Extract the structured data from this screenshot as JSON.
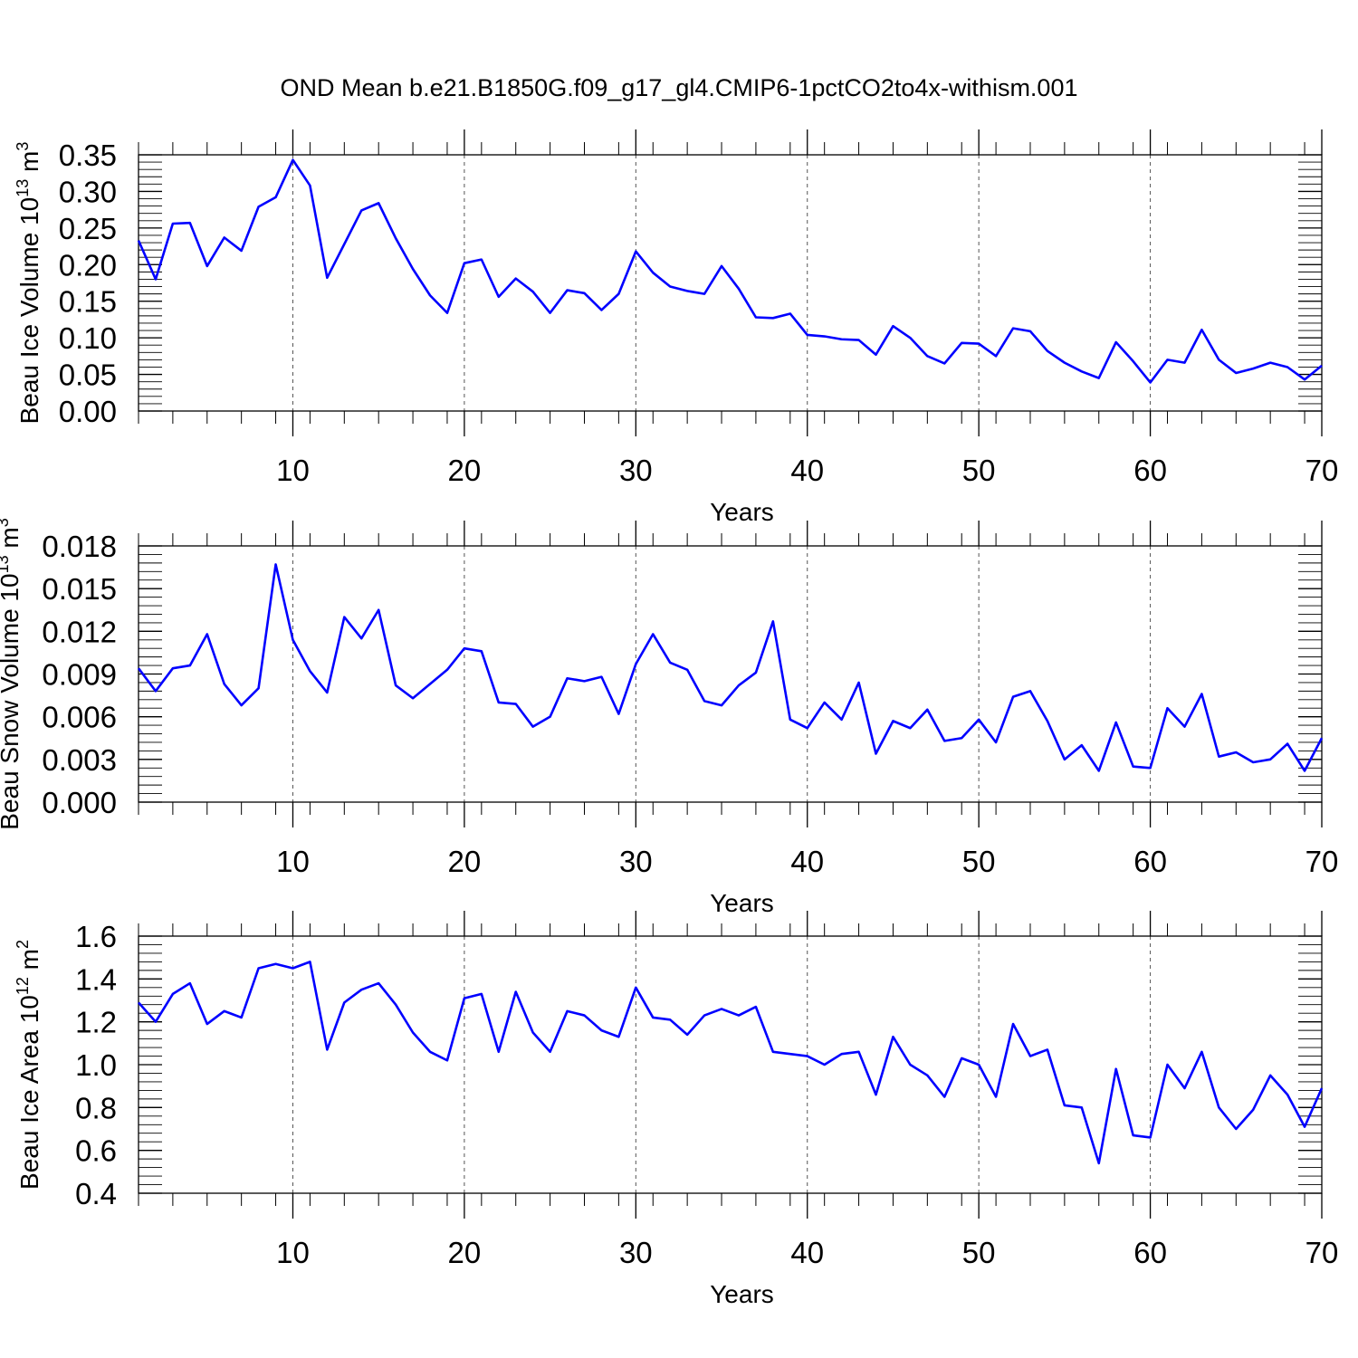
{
  "title": "OND Mean b.e21.B1850G.f09_g17_gl4.CMIP6-1pctCO2to4x-withism.001",
  "colors": {
    "line": "#0000ff",
    "axis": "#000000",
    "grid": "#555555"
  },
  "chart_data": [
    {
      "type": "line",
      "ylabel_main": "Beau Ice Volume 10",
      "ylabel_exp": "13",
      "ylabel_unit": "m",
      "ylabel_unit_exp": "3",
      "xlabel": "Years",
      "xlim": [
        1,
        70
      ],
      "ylim": [
        0,
        0.35
      ],
      "x_ticks": [
        10,
        20,
        30,
        40,
        50,
        60,
        70
      ],
      "x_tick_labels": [
        "10",
        "20",
        "30",
        "40",
        "50",
        "60",
        "70"
      ],
      "y_ticks": [
        0,
        0.05,
        0.1,
        0.15,
        0.2,
        0.25,
        0.3,
        0.35
      ],
      "y_tick_labels": [
        "0.00",
        "0.05",
        "0.10",
        "0.15",
        "0.20",
        "0.25",
        "0.30",
        "0.35"
      ],
      "grid": "vertical dashed at major x ticks",
      "series": [
        {
          "name": "Beau Ice Volume",
          "values": [
            0.233,
            0.18,
            0.256,
            0.257,
            0.198,
            0.237,
            0.219,
            0.279,
            0.292,
            0.343,
            0.308,
            0.182,
            0.228,
            0.274,
            0.284,
            0.236,
            0.194,
            0.158,
            0.134,
            0.202,
            0.207,
            0.156,
            0.181,
            0.163,
            0.134,
            0.165,
            0.161,
            0.138,
            0.16,
            0.218,
            0.189,
            0.17,
            0.164,
            0.16,
            0.198,
            0.167,
            0.128,
            0.127,
            0.133,
            0.104,
            0.102,
            0.098,
            0.097,
            0.077,
            0.116,
            0.1,
            0.075,
            0.065,
            0.093,
            0.092,
            0.075,
            0.113,
            0.109,
            0.082,
            0.066,
            0.054,
            0.045,
            0.094,
            0.068,
            0.039,
            0.07,
            0.066,
            0.111,
            0.07,
            0.052,
            0.058,
            0.066,
            0.06,
            0.043,
            0.062
          ]
        }
      ]
    },
    {
      "type": "line",
      "ylabel_main": "Beau Snow Volume 10",
      "ylabel_exp": "13",
      "ylabel_unit": "m",
      "ylabel_unit_exp": "3",
      "xlabel": "Years",
      "xlim": [
        1,
        70
      ],
      "ylim": [
        0,
        0.018
      ],
      "x_ticks": [
        10,
        20,
        30,
        40,
        50,
        60,
        70
      ],
      "x_tick_labels": [
        "10",
        "20",
        "30",
        "40",
        "50",
        "60",
        "70"
      ],
      "y_ticks": [
        0,
        0.003,
        0.006,
        0.009,
        0.012,
        0.015,
        0.018
      ],
      "y_tick_labels": [
        "0.000",
        "0.003",
        "0.006",
        "0.009",
        "0.012",
        "0.015",
        "0.018"
      ],
      "grid": "vertical dashed at major x ticks",
      "series": [
        {
          "name": "Beau Snow Volume",
          "values": [
            0.0094,
            0.0078,
            0.0094,
            0.0096,
            0.0118,
            0.0083,
            0.0068,
            0.008,
            0.0167,
            0.0114,
            0.0092,
            0.0077,
            0.013,
            0.0115,
            0.0135,
            0.0082,
            0.0073,
            0.0083,
            0.0093,
            0.0108,
            0.0106,
            0.007,
            0.0069,
            0.0053,
            0.006,
            0.0087,
            0.0085,
            0.0088,
            0.0062,
            0.0097,
            0.0118,
            0.0098,
            0.0093,
            0.0071,
            0.0068,
            0.0082,
            0.0091,
            0.0127,
            0.0058,
            0.0052,
            0.007,
            0.0058,
            0.0084,
            0.0034,
            0.0057,
            0.0052,
            0.0065,
            0.0043,
            0.0045,
            0.0058,
            0.0042,
            0.0074,
            0.0078,
            0.0057,
            0.003,
            0.004,
            0.0022,
            0.0056,
            0.0025,
            0.0024,
            0.0066,
            0.0053,
            0.0076,
            0.0032,
            0.0035,
            0.0028,
            0.003,
            0.0041,
            0.0022,
            0.0045
          ]
        }
      ]
    },
    {
      "type": "line",
      "ylabel_main": "Beau Ice Area 10",
      "ylabel_exp": "12",
      "ylabel_unit": "m",
      "ylabel_unit_exp": "2",
      "xlabel": "Years",
      "xlim": [
        1,
        70
      ],
      "ylim": [
        0.4,
        1.6
      ],
      "x_ticks": [
        10,
        20,
        30,
        40,
        50,
        60,
        70
      ],
      "x_tick_labels": [
        "10",
        "20",
        "30",
        "40",
        "50",
        "60",
        "70"
      ],
      "y_ticks": [
        0.4,
        0.6,
        0.8,
        1.0,
        1.2,
        1.4,
        1.6
      ],
      "y_tick_labels": [
        "0.4",
        "0.6",
        "0.8",
        "1.0",
        "1.2",
        "1.4",
        "1.6"
      ],
      "grid": "vertical dashed at major x ticks",
      "series": [
        {
          "name": "Beau Ice Area",
          "values": [
            1.29,
            1.2,
            1.33,
            1.38,
            1.19,
            1.25,
            1.22,
            1.45,
            1.47,
            1.45,
            1.48,
            1.07,
            1.29,
            1.35,
            1.38,
            1.28,
            1.15,
            1.06,
            1.02,
            1.31,
            1.33,
            1.06,
            1.34,
            1.15,
            1.06,
            1.25,
            1.23,
            1.16,
            1.13,
            1.36,
            1.22,
            1.21,
            1.14,
            1.23,
            1.26,
            1.23,
            1.27,
            1.06,
            1.05,
            1.04,
            1.0,
            1.05,
            1.06,
            0.86,
            1.13,
            1.0,
            0.95,
            0.85,
            1.03,
            1.0,
            0.85,
            1.19,
            1.04,
            1.07,
            0.81,
            0.8,
            0.54,
            0.98,
            0.67,
            0.66,
            1.0,
            0.89,
            1.06,
            0.8,
            0.7,
            0.79,
            0.95,
            0.86,
            0.71,
            0.89
          ]
        }
      ]
    }
  ]
}
